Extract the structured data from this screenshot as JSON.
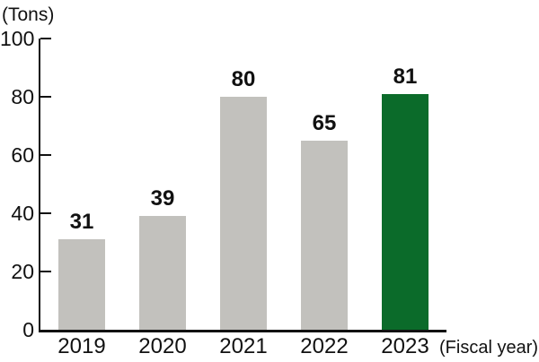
{
  "chart": {
    "y_unit_label": "(Tons)",
    "x_unit_label": "(Fiscal year)"
  },
  "chart_data": {
    "type": "bar",
    "categories": [
      "2019",
      "2020",
      "2021",
      "2022",
      "2023"
    ],
    "values": [
      31,
      39,
      80,
      65,
      81
    ],
    "value_labels": [
      "31",
      "39",
      "80",
      "65",
      "81"
    ],
    "title": "",
    "xlabel": "(Fiscal year)",
    "ylabel": "(Tons)",
    "ylim": [
      0,
      100
    ],
    "y_ticks": [
      0,
      20,
      40,
      60,
      80,
      100
    ],
    "grid": false,
    "legend_position": "none",
    "bar_color_default": "#c2c1bd",
    "bar_color_highlight": "#0b6b2a",
    "highlight_index": 4,
    "axis_color": "#111111",
    "text_color": "#111111"
  }
}
